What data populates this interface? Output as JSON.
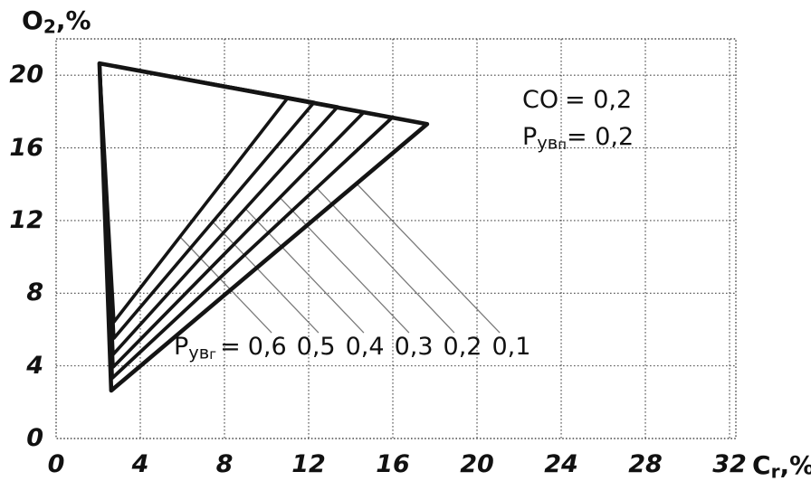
{
  "chart_data": {
    "type": "line",
    "title": "",
    "xlabel": {
      "base": "C",
      "sub": "r",
      "rest": ",%"
    },
    "ylabel": {
      "base": "O",
      "sub": "2",
      "rest": ",%"
    },
    "x_ticks": [
      0,
      4,
      8,
      12,
      16,
      20,
      24,
      28,
      32
    ],
    "y_ticks": [
      0,
      4,
      8,
      12,
      16,
      20
    ],
    "xlim": [
      0,
      32.3
    ],
    "ylim": [
      0,
      22
    ],
    "grid": true,
    "legend_position": "none",
    "colors": {
      "curve": "#141414",
      "grid": "#4a4a4a",
      "leader": "#7a7a7a",
      "text": "#111111",
      "background": "#ffffff"
    },
    "shared_vertex": [
      2.06,
      20.65
    ],
    "series": [
      {
        "name": "Ryvg 0,6",
        "ryvg": "0,6",
        "points": [
          [
            2.06,
            20.65
          ],
          [
            2.75,
            6.42
          ],
          [
            11.01,
            18.76
          ]
        ],
        "closed": true,
        "width": 3.6
      },
      {
        "name": "Ryvg 0,5",
        "ryvg": "0,5",
        "points": [
          [
            2.06,
            20.65
          ],
          [
            2.75,
            5.52
          ],
          [
            12.26,
            18.51
          ]
        ],
        "closed": true,
        "width": 3.6
      },
      {
        "name": "Ryvg 0,4",
        "ryvg": "0,4",
        "points": [
          [
            2.06,
            20.65
          ],
          [
            2.71,
            4.63
          ],
          [
            13.38,
            18.26
          ]
        ],
        "closed": true,
        "width": 3.6
      },
      {
        "name": "Ryvg 0,3",
        "ryvg": "0,3",
        "points": [
          [
            2.06,
            20.65
          ],
          [
            2.71,
            3.93
          ],
          [
            14.62,
            17.96
          ]
        ],
        "closed": true,
        "width": 3.7
      },
      {
        "name": "Ryvg 0,2",
        "ryvg": "0,2",
        "points": [
          [
            2.06,
            20.65
          ],
          [
            2.67,
            3.33
          ],
          [
            15.96,
            17.66
          ]
        ],
        "closed": true,
        "width": 3.8
      },
      {
        "name": "Ryvg 0,1",
        "ryvg": "0,1",
        "points": [
          [
            2.06,
            20.65
          ],
          [
            2.62,
            2.64
          ],
          [
            17.63,
            17.31
          ]
        ],
        "closed": true,
        "width": 4.6
      }
    ],
    "leaders": [
      {
        "label": "0,6",
        "from": [
          5.89,
          11.1
        ],
        "to": [
          10.24,
          5.82
        ]
      },
      {
        "label": "0,5",
        "from": [
          7.44,
          11.93
        ],
        "to": [
          12.47,
          5.82
        ]
      },
      {
        "label": "0,4",
        "from": [
          8.99,
          12.66
        ],
        "to": [
          14.62,
          5.82
        ]
      },
      {
        "label": "0,3",
        "from": [
          10.62,
          13.28
        ],
        "to": [
          16.77,
          5.82
        ]
      },
      {
        "label": "0,2",
        "from": [
          12.39,
          13.78
        ],
        "to": [
          18.92,
          5.82
        ]
      },
      {
        "label": "0,1",
        "from": [
          14.28,
          14.03
        ],
        "to": [
          21.08,
          5.82
        ]
      }
    ],
    "annotations": {
      "co": {
        "name": "CO",
        "value": "= 0,2"
      },
      "ryvp": {
        "base": "Р",
        "sub": "ув",
        "subsub": "п",
        "value": "= 0,2"
      },
      "ryvg_label": {
        "base": "Р",
        "sub": "ув",
        "subsub": "г",
        "eq": "="
      },
      "ryvg_values": [
        "0,6",
        "0,5",
        "0,4",
        "0,3",
        "0,2",
        "0,1"
      ]
    }
  }
}
